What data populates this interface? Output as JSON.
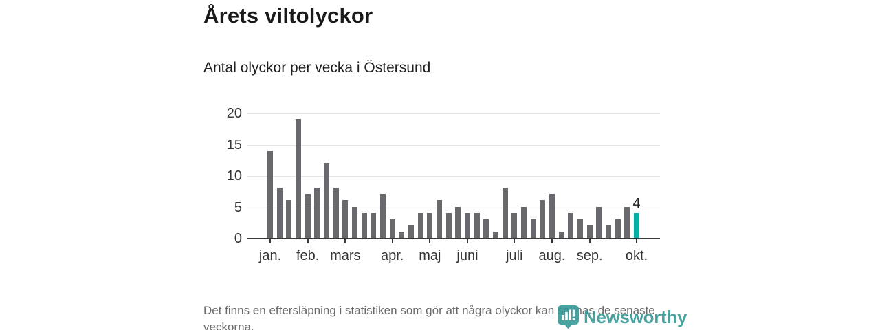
{
  "chart_data": {
    "type": "bar",
    "title": "Årets viltolyckor",
    "subtitle": "Antal olyckor per vecka i Östersund",
    "x_unit": "vecka",
    "values": [
      14,
      8,
      6,
      19,
      7,
      8,
      12,
      8,
      6,
      5,
      4,
      4,
      7,
      3,
      1,
      2,
      4,
      4,
      6,
      4,
      5,
      4,
      4,
      3,
      1,
      8,
      4,
      5,
      3,
      6,
      7,
      1,
      4,
      3,
      2,
      5,
      2,
      3,
      5,
      4
    ],
    "month_ticks": [
      {
        "label": "jan.",
        "week": 1
      },
      {
        "label": "feb.",
        "week": 5
      },
      {
        "label": "mars",
        "week": 9
      },
      {
        "label": "apr.",
        "week": 14
      },
      {
        "label": "maj",
        "week": 18
      },
      {
        "label": "juni",
        "week": 22
      },
      {
        "label": "juli",
        "week": 27
      },
      {
        "label": "aug.",
        "week": 31
      },
      {
        "label": "sep.",
        "week": 35
      },
      {
        "label": "okt.",
        "week": 40
      }
    ],
    "yticks": [
      0,
      5,
      10,
      15,
      20
    ],
    "ylim": [
      0,
      20
    ],
    "grid": true,
    "legend_position": "none",
    "bar_color": "#69696d",
    "highlight_index": 39,
    "highlight_color": "#00b1a7",
    "highlight_label": "4"
  },
  "footer": {
    "note": "Det finns en eftersläpning i statistiken som gör att några olyckor kan saknas de senaste veckorna.",
    "logo_text": "Newsworthy",
    "logo_color": "#2f9794"
  }
}
